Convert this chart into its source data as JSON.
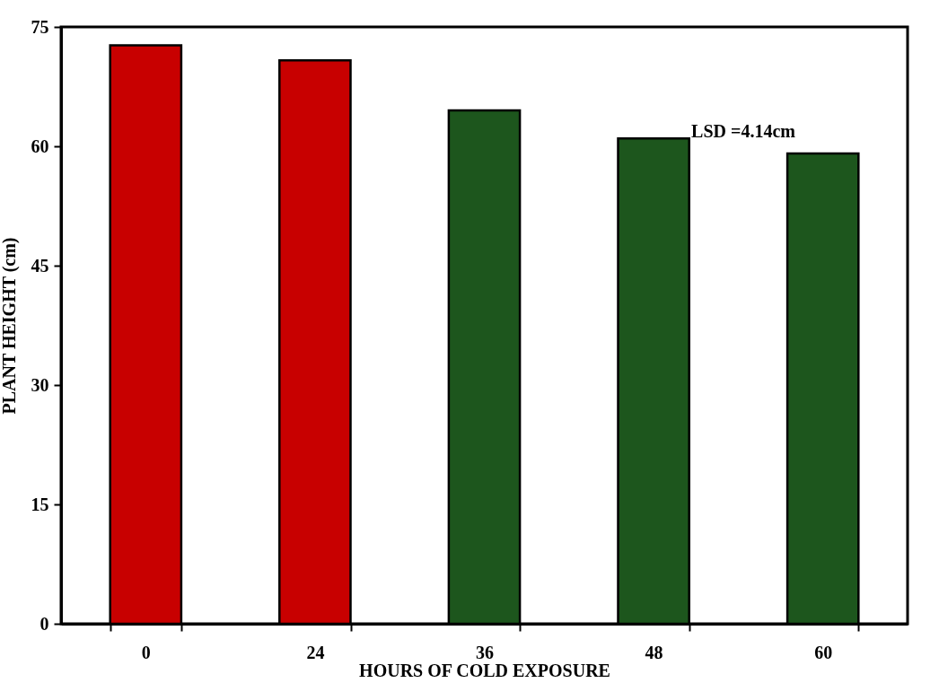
{
  "chart_data": {
    "type": "bar",
    "xlabel": "HOURS OF COLD EXPOSURE",
    "ylabel": "PLANT HEIGHT (cm)",
    "categories": [
      "0",
      "24",
      "36",
      "48",
      "60"
    ],
    "values": [
      72.7,
      70.8,
      64.5,
      61.0,
      59.1
    ],
    "colors": [
      "#c80000",
      "#c80000",
      "#1d561d",
      "#1d561d",
      "#1d561d"
    ],
    "ylim": [
      0,
      75
    ],
    "yticks": [
      0,
      15,
      30,
      45,
      60,
      75
    ],
    "grid": false,
    "legend": false,
    "annotations": [
      "LSD =4.14cm"
    ]
  }
}
